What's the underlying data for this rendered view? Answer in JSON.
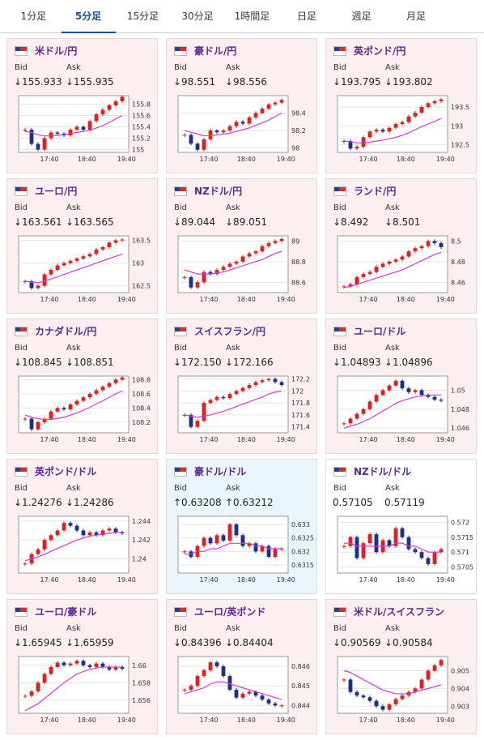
{
  "tabs": [
    "1分足",
    "5分足",
    "15分足",
    "30分足",
    "1時間足",
    "日足",
    "週足",
    "月足"
  ],
  "active_tab": 1,
  "cards": [
    {
      "title": "米ドル/円",
      "background": "#fdeef0",
      "bid_label": "Bid",
      "ask_label": "Ask",
      "bid": "↓155.933",
      "ask": "↓155.935",
      "chart": {
        "ylim": [
          154.95,
          155.95
        ],
        "yticks": [
          155,
          155.2,
          155.4,
          155.6,
          155.8
        ],
        "x_labels": [
          "17:40",
          "18:40",
          "19:40"
        ],
        "close": [
          155.35,
          155.1,
          155.0,
          155.2,
          155.3,
          155.28,
          155.25,
          155.35,
          155.4,
          155.35,
          155.5,
          155.62,
          155.7,
          155.78,
          155.85,
          155.93
        ],
        "ma": [
          155.32,
          155.3,
          155.26,
          155.24,
          155.24,
          155.25,
          155.26,
          155.28,
          155.3,
          155.32,
          155.34,
          155.38,
          155.42,
          155.48,
          155.54,
          155.6
        ]
      }
    },
    {
      "title": "豪ドル/円",
      "background": "#fdeef0",
      "bid_label": "Bid",
      "ask_label": "Ask",
      "bid": "↓98.551",
      "ask": "↓98.556",
      "chart": {
        "ylim": [
          97.95,
          98.6
        ],
        "yticks": [
          98,
          98.2,
          98.4
        ],
        "x_labels": [
          "17:40",
          "18:40",
          "19:40"
        ],
        "close": [
          98.15,
          98.05,
          97.98,
          98.1,
          98.2,
          98.18,
          98.2,
          98.25,
          98.3,
          98.28,
          98.35,
          98.4,
          98.45,
          98.5,
          98.52,
          98.55
        ],
        "ma": [
          98.2,
          98.18,
          98.16,
          98.14,
          98.14,
          98.15,
          98.16,
          98.17,
          98.19,
          98.21,
          98.23,
          98.26,
          98.29,
          98.32,
          98.36,
          98.4
        ]
      }
    },
    {
      "title": "英ポンド/円",
      "background": "#fdeef0",
      "bid_label": "Bid",
      "ask_label": "Ask",
      "bid": "↓193.795",
      "ask": "↓193.802",
      "chart": {
        "ylim": [
          192.3,
          193.8
        ],
        "yticks": [
          192.5,
          193,
          193.5
        ],
        "x_labels": [
          "17:40",
          "18:40",
          "19:40"
        ],
        "close": [
          192.6,
          192.4,
          192.45,
          192.7,
          192.85,
          192.9,
          192.85,
          192.95,
          193.05,
          193.1,
          193.25,
          193.35,
          193.5,
          193.6,
          193.65,
          193.7
        ],
        "ma": [
          192.6,
          192.58,
          192.55,
          192.55,
          192.57,
          192.6,
          192.62,
          192.66,
          192.7,
          192.75,
          192.82,
          192.9,
          192.98,
          193.05,
          193.12,
          193.2
        ]
      }
    },
    {
      "title": "ユーロ/円",
      "background": "#fdeef0",
      "bid_label": "Bid",
      "ask_label": "Ask",
      "bid": "↓163.561",
      "ask": "↓163.565",
      "chart": {
        "ylim": [
          162.35,
          163.6
        ],
        "yticks": [
          162.5,
          163,
          163.5
        ],
        "x_labels": [
          "17:40",
          "18:40",
          "19:40"
        ],
        "close": [
          162.6,
          162.45,
          162.5,
          162.75,
          162.85,
          162.95,
          163.0,
          163.05,
          163.1,
          163.15,
          163.2,
          163.3,
          163.35,
          163.45,
          163.5,
          163.52
        ],
        "ma": [
          162.6,
          162.58,
          162.57,
          162.6,
          162.65,
          162.7,
          162.75,
          162.8,
          162.85,
          162.9,
          162.95,
          163.0,
          163.05,
          163.1,
          163.15,
          163.2
        ]
      }
    },
    {
      "title": "NZドル/円",
      "background": "#fdeef0",
      "bid_label": "Bid",
      "ask_label": "Ask",
      "bid": "↓89.044",
      "ask": "↓89.051",
      "chart": {
        "ylim": [
          88.5,
          89.05
        ],
        "yticks": [
          88.6,
          88.8,
          89
        ],
        "x_labels": [
          "17:40",
          "18:40",
          "19:40"
        ],
        "close": [
          88.65,
          88.55,
          88.6,
          88.7,
          88.68,
          88.72,
          88.75,
          88.78,
          88.8,
          88.85,
          88.88,
          88.9,
          88.95,
          88.98,
          89.0,
          89.02
        ],
        "ma": [
          88.72,
          88.7,
          88.68,
          88.68,
          88.68,
          88.69,
          88.7,
          88.72,
          88.74,
          88.76,
          88.78,
          88.8,
          88.82,
          88.85,
          88.88,
          88.9
        ]
      }
    },
    {
      "title": "ランド/円",
      "background": "#fdeef0",
      "bid_label": "Bid",
      "ask_label": "Ask",
      "bid": "↓8.492",
      "ask": "↓8.501",
      "chart": {
        "ylim": [
          8.45,
          8.505
        ],
        "yticks": [
          8.46,
          8.48,
          8.5
        ],
        "x_labels": [
          "17:40",
          "18:40",
          "19:40"
        ],
        "close": [
          8.456,
          8.458,
          8.465,
          8.468,
          8.47,
          8.475,
          8.478,
          8.48,
          8.482,
          8.485,
          8.49,
          8.493,
          8.495,
          8.5,
          8.498,
          8.494
        ],
        "ma": [
          8.455,
          8.456,
          8.458,
          8.46,
          8.462,
          8.464,
          8.466,
          8.468,
          8.47,
          8.472,
          8.475,
          8.478,
          8.481,
          8.484,
          8.487,
          8.489
        ]
      }
    },
    {
      "title": "カナダドル/円",
      "background": "#fdeef0",
      "bid_label": "Bid",
      "ask_label": "Ask",
      "bid": "↓108.845",
      "ask": "↓108.851",
      "chart": {
        "ylim": [
          108.05,
          108.85
        ],
        "yticks": [
          108.2,
          108.4,
          108.6,
          108.8
        ],
        "x_labels": [
          "17:40",
          "18:40",
          "19:40"
        ],
        "close": [
          108.25,
          108.1,
          108.2,
          108.25,
          108.35,
          108.4,
          108.38,
          108.45,
          108.5,
          108.55,
          108.6,
          108.65,
          108.7,
          108.75,
          108.8,
          108.83
        ],
        "ma": [
          108.3,
          108.27,
          108.25,
          108.24,
          108.24,
          108.25,
          108.27,
          108.3,
          108.33,
          108.37,
          108.41,
          108.46,
          108.5,
          108.55,
          108.6,
          108.64
        ]
      }
    },
    {
      "title": "スイスフラン/円",
      "background": "#fdeef0",
      "bid_label": "Bid",
      "ask_label": "Ask",
      "bid": "↓172.150",
      "ask": "↓172.166",
      "chart": {
        "ylim": [
          171.3,
          172.25
        ],
        "yticks": [
          171.4,
          171.6,
          171.8,
          172,
          172.2
        ],
        "x_labels": [
          "17:40",
          "18:40",
          "19:40"
        ],
        "close": [
          171.6,
          171.4,
          171.5,
          171.8,
          171.85,
          171.9,
          171.88,
          171.95,
          172.0,
          172.05,
          172.1,
          172.15,
          172.18,
          172.2,
          172.15,
          172.1
        ],
        "ma": [
          171.6,
          171.58,
          171.56,
          171.58,
          171.6,
          171.63,
          171.66,
          171.7,
          171.74,
          171.78,
          171.82,
          171.86,
          171.9,
          171.95,
          171.98,
          172.0
        ]
      }
    },
    {
      "title": "ユーロ/ドル",
      "background": "#fdeef0",
      "bid_label": "Bid",
      "ask_label": "Ask",
      "bid": "↓1.04893",
      "ask": "↓1.04896",
      "chart": {
        "ylim": [
          1.0455,
          1.0515
        ],
        "yticks": [
          1.046,
          1.048,
          1.05
        ],
        "x_labels": [
          "17:40",
          "18:40",
          "19:40"
        ],
        "close": [
          1.0465,
          1.047,
          1.0475,
          1.048,
          1.0488,
          1.0495,
          1.05,
          1.0505,
          1.051,
          1.0502,
          1.0498,
          1.05,
          1.0495,
          1.0493,
          1.049,
          1.0489
        ],
        "ma": [
          1.046,
          1.0462,
          1.0464,
          1.0467,
          1.047,
          1.0474,
          1.0478,
          1.0482,
          1.0486,
          1.0489,
          1.0491,
          1.0493,
          1.0494,
          1.0495,
          1.0495,
          1.0495
        ]
      }
    },
    {
      "title": "英ポンド/ドル",
      "background": "#fdeef0",
      "bid_label": "Bid",
      "ask_label": "Ask",
      "bid": "↓1.24276",
      "ask": "↓1.24286",
      "chart": {
        "ylim": [
          1.2385,
          1.2445
        ],
        "yticks": [
          1.24,
          1.242,
          1.244
        ],
        "x_labels": [
          "17:40",
          "18:40",
          "19:40"
        ],
        "close": [
          1.2395,
          1.2405,
          1.241,
          1.242,
          1.2425,
          1.243,
          1.2438,
          1.2435,
          1.243,
          1.2425,
          1.2428,
          1.2425,
          1.243,
          1.2432,
          1.2428,
          1.2427
        ],
        "ma": [
          1.2398,
          1.24,
          1.2402,
          1.2405,
          1.2408,
          1.2411,
          1.2414,
          1.2417,
          1.242,
          1.2422,
          1.2424,
          1.2425,
          1.2426,
          1.2427,
          1.2428,
          1.2428
        ]
      }
    },
    {
      "title": "豪ドル/ドル",
      "background": "#eaf4fb",
      "bid_label": "Bid",
      "ask_label": "Ask",
      "bid": "↑0.63208",
      "ask": "↑0.63212",
      "chart": {
        "ylim": [
          0.6312,
          0.6333
        ],
        "yticks": [
          0.6315,
          0.632,
          0.6325,
          0.633
        ],
        "x_labels": [
          "17:40",
          "18:40",
          "19:40"
        ],
        "close": [
          0.632,
          0.6318,
          0.6322,
          0.6325,
          0.6323,
          0.6326,
          0.6324,
          0.633,
          0.6326,
          0.6322,
          0.6323,
          0.632,
          0.6322,
          0.6318,
          0.6321,
          0.6321
        ],
        "ma": [
          0.6319,
          0.6319,
          0.632,
          0.632,
          0.6321,
          0.6321,
          0.6322,
          0.6323,
          0.6323,
          0.6323,
          0.6323,
          0.6322,
          0.6322,
          0.6321,
          0.6321,
          0.6321
        ]
      }
    },
    {
      "title": "NZドル/ドル",
      "background": "#ffffff",
      "bid_label": "Bid",
      "ask_label": "Ask",
      "bid": "0.57105",
      "ask": "0.57119",
      "chart": {
        "ylim": [
          0.5703,
          0.5722
        ],
        "yticks": [
          0.5705,
          0.571,
          0.5715,
          0.572
        ],
        "x_labels": [
          "17:40",
          "18:40",
          "19:40"
        ],
        "close": [
          0.5712,
          0.5715,
          0.5708,
          0.5713,
          0.5716,
          0.571,
          0.5714,
          0.5712,
          0.5718,
          0.5715,
          0.5711,
          0.571,
          0.5708,
          0.5706,
          0.571,
          0.5711
        ],
        "ma": [
          0.5713,
          0.5713,
          0.5712,
          0.5712,
          0.5712,
          0.5712,
          0.5712,
          0.5712,
          0.5713,
          0.5713,
          0.5712,
          0.5712,
          0.5711,
          0.571,
          0.571,
          0.571
        ]
      }
    },
    {
      "title": "ユーロ/豪ドル",
      "background": "#fdeef0",
      "bid_label": "Bid",
      "ask_label": "Ask",
      "bid": "↓1.65945",
      "ask": "↓1.65959",
      "chart": {
        "ylim": [
          1.6545,
          1.661
        ],
        "yticks": [
          1.656,
          1.658,
          1.66
        ],
        "x_labels": [
          "17:40",
          "18:40",
          "19:40"
        ],
        "close": [
          1.6565,
          1.657,
          1.658,
          1.659,
          1.6598,
          1.6603,
          1.66,
          1.6602,
          1.6605,
          1.66,
          1.6598,
          1.6602,
          1.6598,
          1.6595,
          1.6598,
          1.6596
        ],
        "ma": [
          1.6548,
          1.6552,
          1.6556,
          1.6562,
          1.6568,
          1.6574,
          1.658,
          1.6585,
          1.659,
          1.6593,
          1.6595,
          1.6597,
          1.6598,
          1.6598,
          1.6598,
          1.6598
        ]
      }
    },
    {
      "title": "ユーロ/英ポンド",
      "background": "#fdeef0",
      "bid_label": "Bid",
      "ask_label": "Ask",
      "bid": "↓0.84396",
      "ask": "↓0.84404",
      "chart": {
        "ylim": [
          0.8436,
          0.8465
        ],
        "yticks": [
          0.844,
          0.845,
          0.846
        ],
        "x_labels": [
          "17:40",
          "18:40",
          "19:40"
        ],
        "close": [
          0.8448,
          0.845,
          0.8455,
          0.8458,
          0.8462,
          0.846,
          0.8455,
          0.8448,
          0.8444,
          0.8446,
          0.8447,
          0.8445,
          0.8443,
          0.8441,
          0.844,
          0.844
        ],
        "ma": [
          0.8446,
          0.8447,
          0.8448,
          0.8449,
          0.8451,
          0.8452,
          0.8452,
          0.8451,
          0.845,
          0.8449,
          0.8448,
          0.8447,
          0.8446,
          0.8445,
          0.8444,
          0.8443
        ]
      }
    },
    {
      "title": "米ドル/スイスフラン",
      "background": "#fdeef0",
      "bid_label": "Bid",
      "ask_label": "Ask",
      "bid": "↓0.90569",
      "ask": "↓0.90584",
      "chart": {
        "ylim": [
          0.9026,
          0.9058
        ],
        "yticks": [
          0.903,
          0.904,
          0.905
        ],
        "x_labels": [
          "17:40",
          "18:40",
          "19:40"
        ],
        "close": [
          0.9045,
          0.9038,
          0.9036,
          0.9035,
          0.9033,
          0.903,
          0.9028,
          0.9031,
          0.9034,
          0.9036,
          0.9038,
          0.904,
          0.9045,
          0.905,
          0.9053,
          0.9056
        ],
        "ma": [
          0.905,
          0.9049,
          0.9047,
          0.9045,
          0.9043,
          0.9041,
          0.9039,
          0.9038,
          0.9037,
          0.9037,
          0.9037,
          0.9038,
          0.9039,
          0.904,
          0.9041,
          0.9042
        ]
      }
    }
  ]
}
